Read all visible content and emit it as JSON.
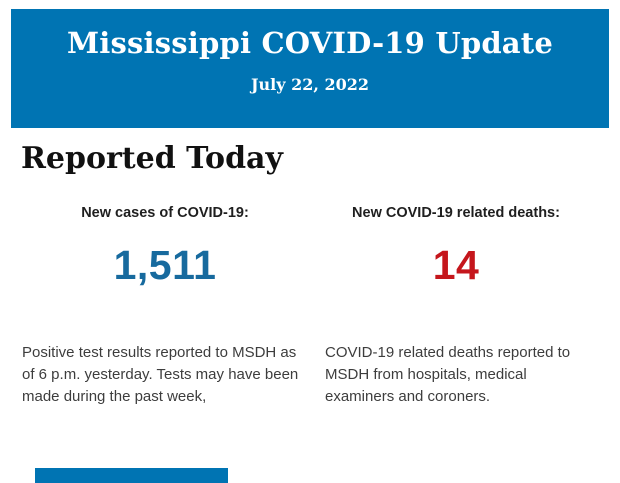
{
  "colors": {
    "banner_blue": "#0074b3",
    "cases_blue": "#176a9e",
    "deaths_red": "#c5161c",
    "body_text": "#3d3d3d"
  },
  "header": {
    "title": "Mississippi COVID-19 Update",
    "date": "July 22, 2022"
  },
  "section": {
    "title": "Reported Today"
  },
  "stats": {
    "cases": {
      "label": "New cases of COVID-19:",
      "value": "1,511",
      "description": "Positive test results reported to MSDH as of 6 p.m. yesterday. Tests may have been made during the past week,"
    },
    "deaths": {
      "label": "New COVID-19 related deaths:",
      "value": "14",
      "description": "COVID-19 related deaths reported to MSDH from hospitals, medical examiners and coroners."
    }
  }
}
